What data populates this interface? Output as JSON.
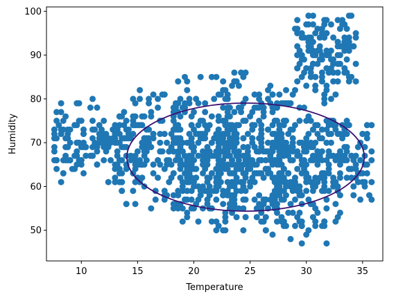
{
  "chart_data": {
    "type": "scatter",
    "xlabel": "Temperature",
    "ylabel": "Humidity",
    "xlim": [
      6.9,
      36.8
    ],
    "ylim": [
      43,
      101
    ],
    "xticks": [
      10,
      15,
      20,
      25,
      30,
      35
    ],
    "yticks": [
      50,
      60,
      70,
      80,
      90,
      100
    ],
    "grid": false,
    "point_color": "#1f77b4",
    "ellipse_color": "#3b0f70",
    "ellipse": {
      "center": [
        24.6,
        66.7
      ],
      "x_radius": 10.55,
      "y_radius": 12.35
    },
    "clusters": [
      {
        "x_range": [
          7.5,
          14
        ],
        "y_range": [
          60,
          80
        ],
        "count": 140
      },
      {
        "x_range": [
          13,
          20
        ],
        "y_range": [
          52,
          84
        ],
        "count": 180
      },
      {
        "x_range": [
          18,
          24
        ],
        "y_range": [
          48,
          87
        ],
        "count": 220
      },
      {
        "x_range": [
          22,
          28
        ],
        "y_range": [
          46,
          88
        ],
        "count": 300
      },
      {
        "x_range": [
          27,
          33
        ],
        "y_range": [
          46,
          84
        ],
        "count": 260
      },
      {
        "x_range": [
          29,
          34.5
        ],
        "y_range": [
          80,
          100
        ],
        "count": 140
      },
      {
        "x_range": [
          33,
          36
        ],
        "y_range": [
          54,
          77
        ],
        "count": 60
      }
    ]
  }
}
